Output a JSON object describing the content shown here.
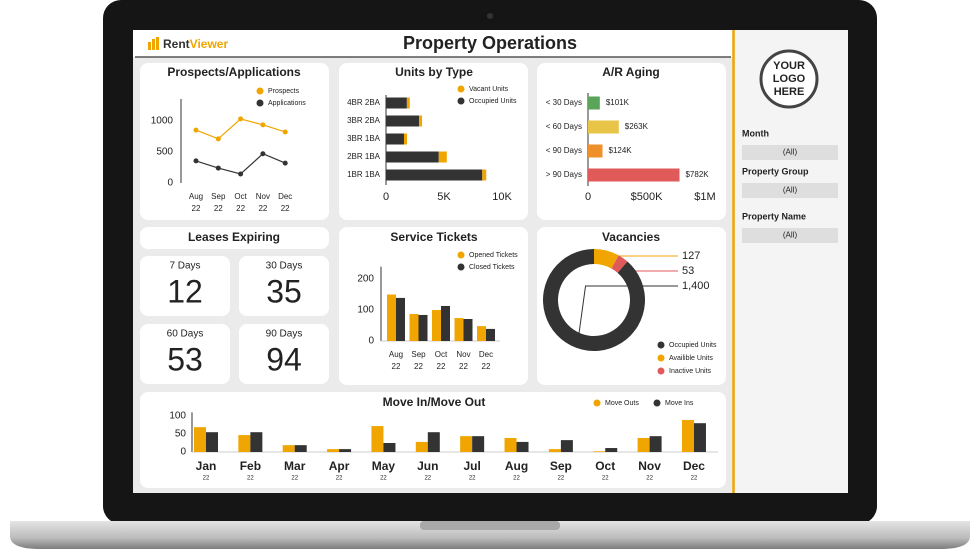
{
  "header": {
    "logo_part1": "Rent",
    "logo_part2": "Viewer",
    "title": "Property Operations"
  },
  "sidebar": {
    "logo_placeholder": [
      "YOUR",
      "LOGO",
      "HERE"
    ],
    "filters": [
      {
        "label": "Month",
        "value": "(All)"
      },
      {
        "label": "Property Group",
        "value": "(All)"
      },
      {
        "label": "Property Name",
        "value": "(All)"
      }
    ]
  },
  "leases_expiring": {
    "title": "Leases Expiring",
    "tiles": [
      {
        "label": "7 Days",
        "value": 12
      },
      {
        "label": "30 Days",
        "value": 35
      },
      {
        "label": "60 Days",
        "value": 53
      },
      {
        "label": "90 Days",
        "value": 94
      }
    ]
  },
  "chart_data": [
    {
      "type": "line",
      "title": "Prospects/Applications",
      "categories": [
        [
          "Aug",
          "22"
        ],
        [
          "Sep",
          "22"
        ],
        [
          "Oct",
          "22"
        ],
        [
          "Nov",
          "22"
        ],
        [
          "Dec",
          "22"
        ]
      ],
      "series": [
        {
          "name": "Prospects",
          "color": "#f0a500",
          "values": [
            850,
            710,
            1030,
            935,
            820
          ]
        },
        {
          "name": "Applications",
          "color": "#333333",
          "values": [
            355,
            240,
            145,
            470,
            320
          ]
        }
      ],
      "ylim": [
        0,
        1350
      ],
      "yticks": [
        0,
        500,
        1000
      ]
    },
    {
      "type": "bar",
      "orientation": "horizontal",
      "stacked": true,
      "title": "Units by Type",
      "categories": [
        "4BR 2BA",
        "3BR 2BA",
        "3BR 1BA",
        "2BR 1BA",
        "1BR 1BA"
      ],
      "series": [
        {
          "name": "Vacant Units",
          "color": "#f0a500",
          "values": [
            250,
            260,
            260,
            690,
            340
          ]
        },
        {
          "name": "Occupied Units",
          "color": "#333333",
          "values": [
            1800,
            2850,
            1550,
            4550,
            8300
          ]
        }
      ],
      "xlim": [
        0,
        11000
      ],
      "xticks": [
        0,
        {
          "value": 5000,
          "label": "5K"
        },
        {
          "value": 10000,
          "label": "10K"
        }
      ]
    },
    {
      "type": "bar",
      "orientation": "horizontal",
      "title": "A/R Aging",
      "categories": [
        "< 30 Days",
        "< 60 Days",
        "< 90 Days",
        "> 90 Days"
      ],
      "values": [
        101000,
        263000,
        124000,
        782000
      ],
      "value_labels": [
        "$101K",
        "$263K",
        "$124K",
        "$782K"
      ],
      "colors": [
        "#5aa55a",
        "#e8c547",
        "#f0902a",
        "#e05a5a"
      ],
      "xlim": [
        0,
        1100000
      ],
      "xticks": [
        0,
        {
          "value": 500000,
          "label": "$500K"
        },
        {
          "value": 1000000,
          "label": "$1M"
        }
      ]
    },
    {
      "type": "bar",
      "title": "Service Tickets",
      "categories": [
        [
          "Aug",
          "22"
        ],
        [
          "Sep",
          "22"
        ],
        [
          "Oct",
          "22"
        ],
        [
          "Nov",
          "22"
        ],
        [
          "Dec",
          "22"
        ]
      ],
      "series": [
        {
          "name": "Opened Tickets",
          "color": "#f0a500",
          "values": [
            150,
            87,
            100,
            74,
            48
          ]
        },
        {
          "name": "Closed Tickets",
          "color": "#333333",
          "values": [
            139,
            84,
            113,
            71,
            39
          ]
        }
      ],
      "ylim": [
        0,
        240
      ],
      "yticks": [
        0,
        100,
        200
      ]
    },
    {
      "type": "pie",
      "donut": true,
      "title": "Vacancies",
      "categories": [
        "Occupied Units",
        "Availible Units",
        "Inactive Units"
      ],
      "values": [
        1400,
        127,
        53
      ],
      "value_labels": [
        "1,400",
        "127",
        "53"
      ],
      "colors": [
        "#333333",
        "#f0a500",
        "#e05a5a"
      ]
    },
    {
      "type": "bar",
      "title": "Move In/Move Out",
      "categories": [
        [
          "Jan",
          "22"
        ],
        [
          "Feb",
          "22"
        ],
        [
          "Mar",
          "22"
        ],
        [
          "Apr",
          "22"
        ],
        [
          "May",
          "22"
        ],
        [
          "Jun",
          "22"
        ],
        [
          "Jul",
          "22"
        ],
        [
          "Aug",
          "22"
        ],
        [
          "Sep",
          "22"
        ],
        [
          "Oct",
          "22"
        ],
        [
          "Nov",
          "22"
        ],
        [
          "Dec",
          "22"
        ]
      ],
      "series": [
        {
          "name": "Move Outs",
          "color": "#f0a500",
          "values": [
            69,
            47,
            19,
            8,
            72,
            28,
            44,
            39,
            8,
            2,
            39,
            89
          ]
        },
        {
          "name": "Move Ins",
          "color": "#333333",
          "values": [
            55,
            55,
            19,
            8,
            25,
            55,
            44,
            28,
            33,
            11,
            44,
            80
          ]
        }
      ],
      "ylim": [
        0,
        110
      ],
      "yticks": [
        0,
        50,
        100
      ]
    }
  ]
}
